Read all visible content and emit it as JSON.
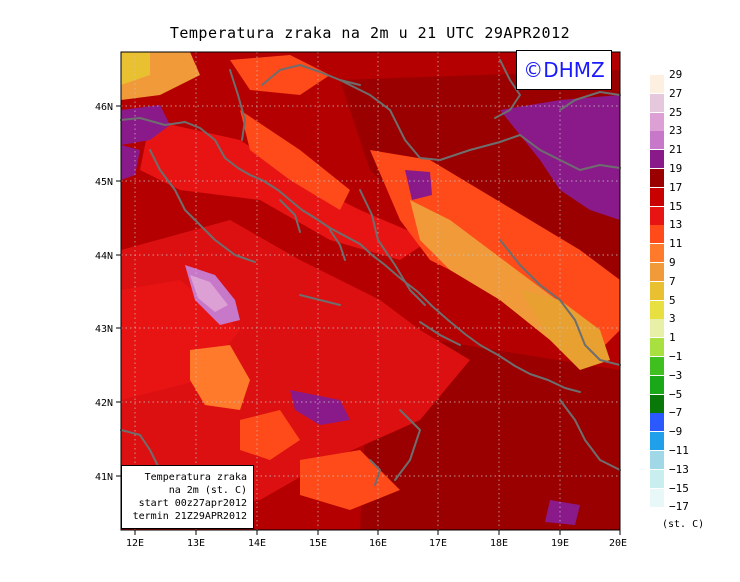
{
  "title": "Temperatura zraka na 2m u 21 UTC 29APR2012",
  "logo": "©DHMZ",
  "info_box": [
    "Temperatura zraka",
    "na 2m (st. C)",
    "start 00z27apr2012",
    "termin 21Z29APR2012"
  ],
  "lat_labels": [
    "46N",
    "45N",
    "44N",
    "43N",
    "42N",
    "41N"
  ],
  "lon_labels": [
    "12E",
    "13E",
    "14E",
    "15E",
    "16E",
    "17E",
    "18E",
    "19E",
    "20E"
  ],
  "legend": {
    "unit": "(st. C)",
    "levels": [
      "29",
      "27",
      "25",
      "23",
      "21",
      "19",
      "17",
      "15",
      "13",
      "11",
      "9",
      "7",
      "5",
      "3",
      "1",
      "−1",
      "−3",
      "−5",
      "−7",
      "−9",
      "−11",
      "−13",
      "−15",
      "−17"
    ],
    "colors": [
      "#fdf0e0",
      "#e6c8dc",
      "#dca0d4",
      "#c878c8",
      "#8a1a8a",
      "#9a0000",
      "#c80000",
      "#e81414",
      "#ff4a1a",
      "#ff7a2a",
      "#f09a3a",
      "#e8c030",
      "#e8e040",
      "#e8f0a8",
      "#a8e040",
      "#40c020",
      "#18a818",
      "#087808",
      "#2a5aff",
      "#20a0e8",
      "#a0d8e8",
      "#c8eef0",
      "#e8f8f8"
    ]
  }
}
